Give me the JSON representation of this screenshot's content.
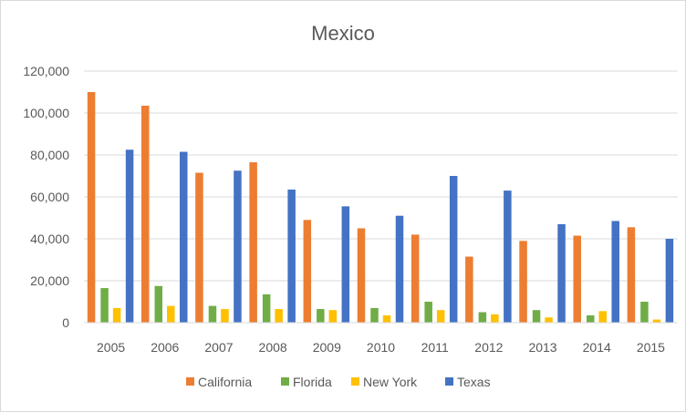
{
  "chart_data": {
    "type": "bar",
    "title": "Mexico",
    "xlabel": "",
    "ylabel": "",
    "categories": [
      "2005",
      "2006",
      "2007",
      "2008",
      "2009",
      "2010",
      "2011",
      "2012",
      "2013",
      "2014",
      "2015"
    ],
    "ylim": [
      0,
      120000
    ],
    "yticks": [
      0,
      20000,
      40000,
      60000,
      80000,
      100000,
      120000
    ],
    "ytick_labels": [
      "0",
      "20,000",
      "40,000",
      "60,000",
      "80,000",
      "100,000",
      "120,000"
    ],
    "grid": "horizontal",
    "legend_position": "bottom",
    "series": [
      {
        "name": "California",
        "color": "#ED7D31",
        "values": [
          110000,
          103500,
          71500,
          76500,
          49000,
          45000,
          42000,
          31500,
          39000,
          41500,
          45500
        ]
      },
      {
        "name": "Florida",
        "color": "#70AD47",
        "values": [
          16500,
          17500,
          8000,
          13500,
          6500,
          7000,
          10000,
          5000,
          6000,
          3500,
          10000
        ]
      },
      {
        "name": "New York",
        "color": "#FFC000",
        "values": [
          7000,
          8000,
          6500,
          6500,
          6000,
          3500,
          6000,
          4000,
          2500,
          5500,
          1500
        ]
      },
      {
        "name": "Texas",
        "color": "#4472C4",
        "values": [
          82500,
          81500,
          72500,
          63500,
          55500,
          51000,
          70000,
          63000,
          47000,
          48500,
          40000
        ]
      }
    ]
  }
}
